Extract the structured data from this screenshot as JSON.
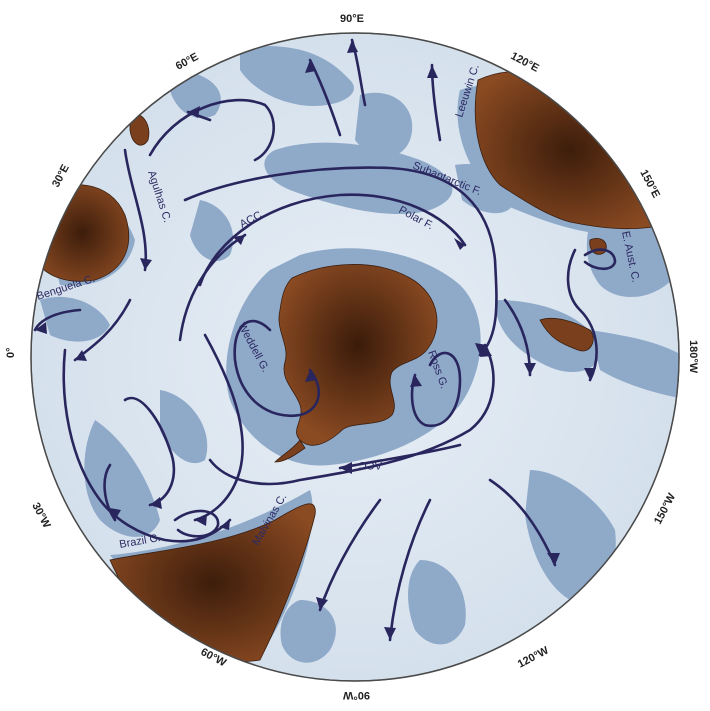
{
  "longitudes": {
    "e90": "90°E",
    "e60": "60°E",
    "e120": "120°E",
    "e30": "30°E",
    "e150": "150°E",
    "zero": "0°",
    "w180": "180°W",
    "w30": "30°W",
    "w150": "150°W",
    "w60": "60°W",
    "w120": "120°W",
    "w90": "90°W"
  },
  "currents": {
    "leeuwin": "Leeuwin C.",
    "agulhas": "Agulhas C.",
    "subantarctic": "Subantarctic F.",
    "polar": "Polar F.",
    "acc_upper": "ACC",
    "acc_lower": "ACC",
    "e_aust": "E. Aust. C.",
    "benguela": "Benguela C.",
    "weddell": "Weddell G.",
    "ross": "Ross G.",
    "brazil": "Brazil C.",
    "malvinas": "Malvinas C."
  },
  "colors": {
    "ocean": "#dde7f1",
    "shelf": "#8fa9c9",
    "land": "#7a3f1c",
    "current": "#29265e"
  }
}
